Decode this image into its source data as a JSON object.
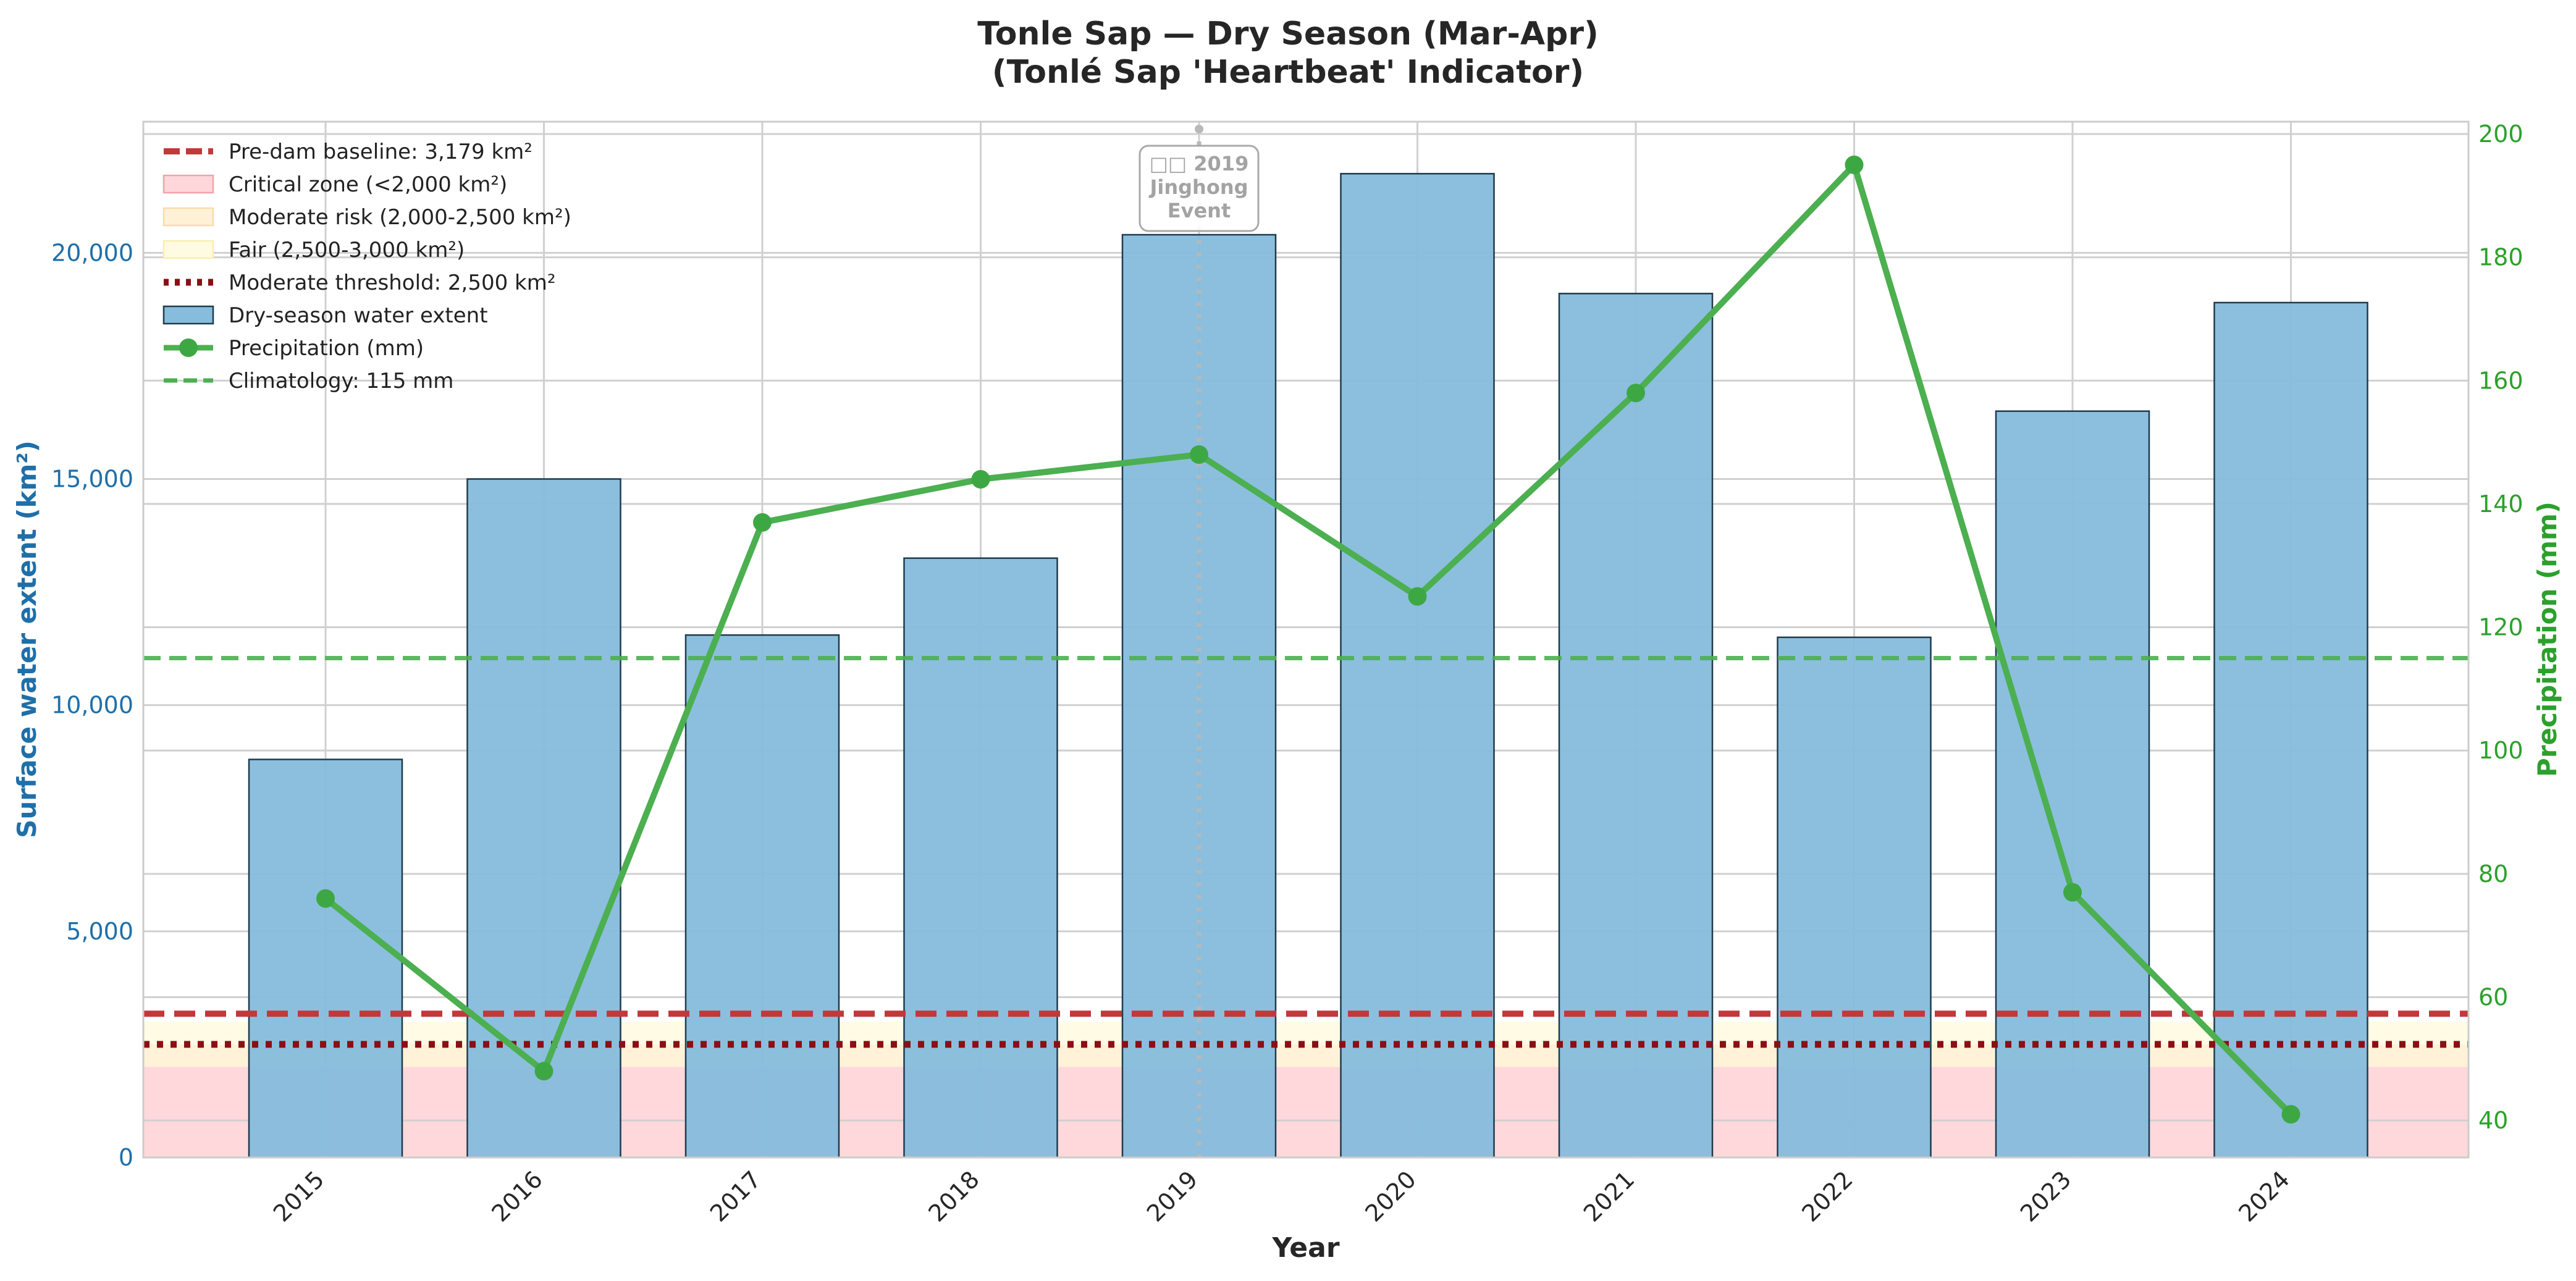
{
  "colors": {
    "bar_fill": "#86bcdc",
    "bar_edge": "#1f3b4d",
    "precip": "#4caf50",
    "precip_marker": "#3da843",
    "baseline": "#c0393b",
    "moderate_threshold": "#8b0f14",
    "climatology": "#4caf50",
    "critical_zone": "#ffd6d9",
    "moderate_zone": "#fff1d6",
    "fair_zone": "#fffbe3",
    "left_axis": "#1f6fa8",
    "right_axis": "#2ca02c",
    "grid": "#d0d0d0",
    "event_line": "#b8b8b8"
  },
  "chart_data": {
    "type": "bar",
    "title": "Tonle Sap — Dry Season (Mar-Apr)",
    "subtitle": "(Tonlé Sap 'Heartbeat' Indicator)",
    "xlabel": "Year",
    "ylabel_left": "Surface water extent (km²)",
    "ylabel_right": "Precipitation (mm)",
    "categories": [
      "2015",
      "2016",
      "2017",
      "2018",
      "2019",
      "2020",
      "2021",
      "2022",
      "2023",
      "2024"
    ],
    "ylim_left": [
      0,
      22900
    ],
    "ylim_right": [
      34,
      202
    ],
    "yticks_left": [
      0,
      5000,
      10000,
      15000,
      20000
    ],
    "ytick_labels_left": [
      "0",
      "5,000",
      "10,000",
      "15,000",
      "20,000"
    ],
    "yticks_right": [
      40,
      60,
      80,
      100,
      120,
      140,
      160,
      180,
      200
    ],
    "ytick_labels_right": [
      "40",
      "60",
      "80",
      "100",
      "120",
      "140",
      "160",
      "180",
      "200"
    ],
    "grid": true,
    "legend_position": "top-left",
    "series": [
      {
        "name": "Dry-season water extent",
        "type": "bar",
        "axis": "left",
        "values": [
          8800,
          15000,
          11550,
          13250,
          20400,
          21750,
          19100,
          11500,
          16500,
          18900
        ]
      },
      {
        "name": "Precipitation (mm)",
        "type": "line",
        "axis": "right",
        "values": [
          76,
          48,
          137,
          144,
          148,
          125,
          158,
          195,
          77,
          41
        ]
      }
    ],
    "reference_lines": [
      {
        "name": "Pre-dam baseline: 3,179 km²",
        "axis": "left",
        "value": 3179,
        "style": "dashed"
      },
      {
        "name": "Moderate threshold: 2,500 km²",
        "axis": "left",
        "value": 2500,
        "style": "dotted"
      },
      {
        "name": "Climatology: 115 mm",
        "axis": "right",
        "value": 115,
        "style": "dashed"
      }
    ],
    "zones": [
      {
        "name": "Critical zone (<2,000 km²)",
        "from": 0,
        "to": 2000
      },
      {
        "name": "Moderate risk (2,000-2,500 km²)",
        "from": 2000,
        "to": 2500
      },
      {
        "name": "Fair (2,500-3,000 km²)",
        "from": 2500,
        "to": 3000
      }
    ],
    "annotations": [
      {
        "category": "2019",
        "lines": [
          "□□ 2019",
          "Jinghong",
          "Event"
        ]
      }
    ]
  }
}
